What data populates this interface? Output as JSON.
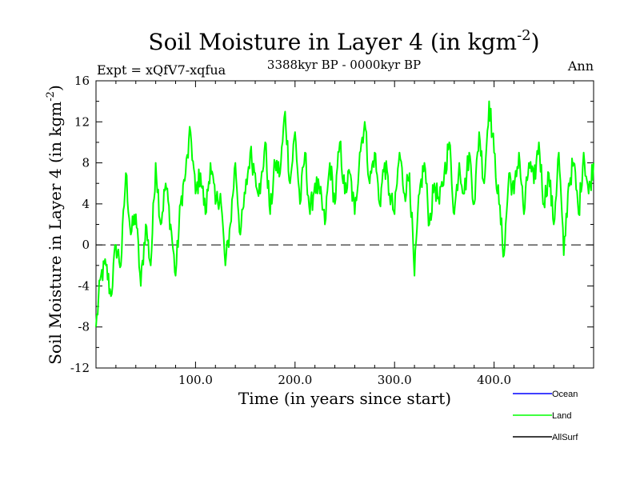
{
  "chart_data": {
    "type": "line",
    "title_main": "Soil Moisture in Layer 4 (in kgm",
    "title_sup": "-2",
    "title_close": ")",
    "subtitle": "3388kyr BP - 0000kyr BP",
    "expt_label": "Expt = xQfV7-xqfua",
    "season_label": "Ann",
    "xlabel": "Time (in years since start)",
    "ylabel_main": "Soil Moisture in Layer 4 (in kgm",
    "ylabel_sup": "-2",
    "ylabel_close": ")",
    "xlim": [
      0,
      500
    ],
    "ylim": [
      -12,
      16
    ],
    "x_ticks": [
      100,
      200,
      300,
      400
    ],
    "x_tick_labels": [
      "100.0",
      "200.0",
      "300.0",
      "400.0"
    ],
    "y_ticks": [
      -12,
      -8,
      -4,
      0,
      4,
      8,
      12,
      16
    ],
    "y_tick_labels": [
      "-12",
      "-8",
      "-4",
      "0",
      "4",
      "8",
      "12",
      "16"
    ],
    "reference_line": 0,
    "legend": [
      {
        "name": "Ocean",
        "color": "#0000ff"
      },
      {
        "name": "Land",
        "color": "#00ff00"
      },
      {
        "name": "AllSurf",
        "color": "#000000"
      }
    ],
    "series": [
      {
        "name": "Land",
        "color": "#00ff00",
        "x": [
          0,
          5,
          10,
          15,
          20,
          25,
          30,
          35,
          40,
          45,
          50,
          55,
          60,
          65,
          70,
          75,
          80,
          85,
          90,
          95,
          100,
          105,
          110,
          115,
          120,
          125,
          130,
          135,
          140,
          145,
          150,
          155,
          160,
          165,
          170,
          175,
          180,
          185,
          190,
          195,
          200,
          205,
          210,
          215,
          220,
          225,
          230,
          235,
          240,
          245,
          250,
          255,
          260,
          265,
          270,
          275,
          280,
          285,
          290,
          295,
          300,
          305,
          310,
          315,
          320,
          325,
          330,
          335,
          340,
          345,
          350,
          355,
          360,
          365,
          370,
          375,
          380,
          385,
          390,
          395,
          400,
          405,
          410,
          415,
          420,
          425,
          430,
          435,
          440,
          445,
          450,
          455,
          460,
          465,
          470,
          475,
          480,
          485,
          490,
          495,
          500
        ],
        "values": [
          -8,
          -3,
          -2,
          -5,
          0,
          -2,
          7,
          1,
          3,
          -4,
          2,
          -2,
          8,
          2,
          6,
          2,
          -3,
          4,
          7,
          11,
          5,
          7,
          3,
          8,
          4,
          5,
          -2,
          2,
          8,
          1,
          5,
          9,
          7,
          5,
          10,
          3,
          8,
          7,
          13,
          6,
          11,
          4,
          9,
          3,
          6,
          5,
          2,
          8,
          4,
          10,
          5,
          7,
          3,
          9,
          12,
          6,
          9,
          4,
          8,
          5,
          3,
          9,
          5,
          7,
          -3,
          5,
          8,
          2,
          6,
          4,
          7,
          10,
          3,
          8,
          5,
          9,
          4,
          11,
          6,
          14,
          9,
          4,
          -1,
          7,
          5,
          9,
          3,
          8,
          6,
          10,
          4,
          7,
          2,
          9,
          -1,
          6,
          8,
          3,
          9,
          5,
          8
        ]
      }
    ]
  }
}
